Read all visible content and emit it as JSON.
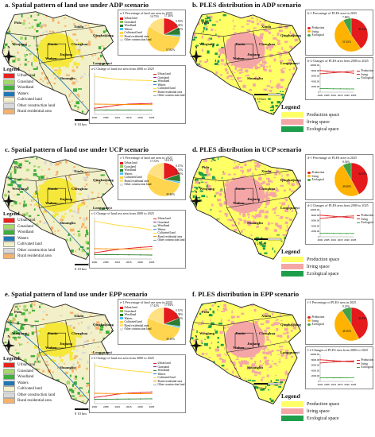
{
  "panels": [
    {
      "id": "a",
      "title": "a.  Spatial pattern of land use under ADP scenario",
      "kind": "landuse",
      "places": [
        "Pidu",
        "Xindu",
        "Qingbaijiang",
        "Wenjiang",
        "Jinniu",
        "Chenghua",
        "Wuhou",
        "Jinjiang",
        "Longquanyi",
        "Shuangliu"
      ],
      "pie_title": "a-1 Percentage of land use area in 2025",
      "pie_values": [
        17.46,
        0.55,
        7.4,
        1.6,
        57.82,
        16.75,
        0.03
      ],
      "pie_labels": [
        "17.46%",
        "0.55%",
        "7.40%",
        "1.60%",
        "57.82%",
        "16.75%",
        "0.03%"
      ],
      "line_title": "a-2 Change of land use area from 2000 to 2025"
    },
    {
      "id": "b",
      "title": "b.  PLES distribution in ADP scenario",
      "kind": "ples",
      "places": [
        "Pidu",
        "Xindu",
        "Qingbaijiang",
        "Wenjiang",
        "Jinniu",
        "Chenghua",
        "Wuhou",
        "Jinjiang",
        "Longquanyi",
        "Shuangliu"
      ],
      "pie_title": "b-1 Percentage of PLES area in 2025",
      "pie_values": [
        40.22,
        51.92,
        7.86
      ],
      "pie_labels": [
        "40.22%",
        "51.92%",
        "7.86%"
      ],
      "line_title": "b-2 Changes of PLES area from 2000 to 2025"
    },
    {
      "id": "c",
      "title": "c.  Spatial pattern of land use under UCP scenario",
      "kind": "landuse",
      "places": [
        "Pidu",
        "Xindu",
        "Qingbaijiang",
        "Wenjiang",
        "Jinniu",
        "Chenghua",
        "Wuhou",
        "Jinjiang",
        "Longquanyi",
        "Shuangliu"
      ],
      "pie_title": "c-1 Percentage of land use area in 2025",
      "pie_values": [
        18.41,
        0.15,
        6.74,
        1.68,
        49.46,
        17.52,
        0.04
      ],
      "pie_labels": [
        "18.41%",
        "0.15%",
        "6.74%",
        "1.68%",
        "49.46%",
        "17.52%",
        "0.04%"
      ],
      "line_title": "c-2 Change of land use area from 2000 to 2025"
    },
    {
      "id": "d",
      "title": "d.  PLES distribution in UCP scenario",
      "kind": "ples",
      "places": [
        "Pidu",
        "Xindu",
        "Qingbaijiang",
        "Wenjiang",
        "Jinniu",
        "Chenghua",
        "Wuhou",
        "Jinjiang",
        "Longquanyi",
        "Shuangliu"
      ],
      "pie_title": "d-1 Percentage of PLES area in 2025",
      "pie_values": [
        42.03,
        49.6,
        8.36
      ],
      "pie_labels": [
        "42.03%",
        "49.60%",
        "8.36%"
      ],
      "line_title": "d-2 Changes of PLES area from 2000 to 2025"
    },
    {
      "id": "e",
      "title": "e.  Spatial pattern of land use under EPP scenario",
      "kind": "landuse",
      "places": [
        "Pidu",
        "Xindu",
        "Qingbaijiang",
        "Wenjiang",
        "Jinniu",
        "Chenghua",
        "Wuhou",
        "Jinjiang",
        "Longquanyi",
        "Shuangliu"
      ],
      "pie_title": "e-1 Percentage of land use area in 2025",
      "pie_values": [
        17.84,
        0.15,
        7.38,
        1.66,
        49.16,
        17.42,
        0.39
      ],
      "pie_labels": [
        "17.84%",
        "0.15%",
        "7.38%",
        "1.66%",
        "49.16%",
        "17.42%",
        "0.39%"
      ],
      "line_title": "e-2 Change of land use area from 2000 to 2025"
    },
    {
      "id": "f",
      "title": "f.  PLES distribution in EPP scenario",
      "kind": "ples",
      "places": [
        "Pidu",
        "Xindu",
        "Qingbaijiang",
        "Wenjiang",
        "Jinniu",
        "Chenghua",
        "Wuhou",
        "Jinjiang",
        "Longquanyi",
        "Shuangliu"
      ],
      "pie_title": "f-1 Percentage of PLES area in 2025",
      "pie_values": [
        41.83,
        48.16,
        9.25
      ],
      "pie_labels": [
        "41.83%",
        "48.16%",
        "9.25%"
      ],
      "line_title": "f-2 Changes of PLES area from 2000 to 2025"
    }
  ],
  "landuse_legend": {
    "title": "Legend",
    "items": [
      "Urban land",
      "Grassland",
      "Woodland",
      "Waters",
      "Cultivated land",
      "Other construction land",
      "Rural residential area"
    ]
  },
  "landuse_pie_legend": [
    "Urban land",
    "Grassland",
    "Woodland",
    "Waters",
    "Cultivated land",
    "Rural residential area",
    "Other construction land"
  ],
  "landuse_line_legend": [
    "Urban land",
    "Grassland",
    "Woodland",
    "Waters",
    "Cultivated land",
    "Rural residential area",
    "Other construction land"
  ],
  "ples_pie_legend": [
    "Production",
    "living",
    "Ecological"
  ],
  "ples_line_legend": [
    "Production",
    "living",
    "Ecological"
  ],
  "ples_legend": {
    "title": "Legend",
    "items": [
      "Production space",
      "living space",
      "Ecological space"
    ]
  },
  "years": [
    "2000",
    "2005",
    "2010",
    "2015",
    "2020",
    "2025"
  ],
  "ples_yticks": [
    "10000.00",
    "8000.00",
    "6000.00",
    "4000.00",
    "2000.00",
    "0"
  ],
  "scale_label": "0     10 km",
  "north_label": "N",
  "colors": {
    "urban": "#e8231e",
    "grass": "#a5d86a",
    "wood": "#3fae3c",
    "water": "#1f78b4",
    "cultivated": "#f2f0c8",
    "other": "#d9d9d9",
    "rural": "#f6b26b",
    "production": "#ffff66",
    "living": "#f4a6a6",
    "ecological": "#1e9e4a",
    "pie_urban": "#e41a1c",
    "pie_grass": "#8bc34a",
    "pie_wood": "#2e7d32",
    "pie_water": "#4fc3f7",
    "pie_cult": "#ffd54f",
    "pie_rural": "#ffe082",
    "pie_other": "#e0e0e0",
    "boundary": "#222222"
  },
  "chart_data": [
    {
      "type": "pie",
      "title": "a-1 Percentage of land use area in 2025",
      "categories": [
        "Urban land",
        "Grassland",
        "Woodland",
        "Waters",
        "Cultivated land",
        "Rural residential area",
        "Other construction land"
      ],
      "values": [
        17.46,
        0.55,
        7.4,
        1.6,
        57.82,
        16.75,
        0.03
      ]
    },
    {
      "type": "line",
      "title": "a-2 Change of land use area from 2000 to 2025",
      "x": [
        "2000",
        "2005",
        "2010",
        "2015",
        "2020",
        "2025"
      ],
      "series": [
        {
          "name": "Urban land",
          "values": [
            900,
            1100,
            1350,
            1500,
            1550,
            1600
          ]
        },
        {
          "name": "Cultivated land",
          "values": [
            5500,
            5300,
            5100,
            5000,
            4950,
            4900
          ]
        },
        {
          "name": "Rural residential area",
          "values": [
            1500,
            1480,
            1460,
            1440,
            1430,
            1420
          ]
        },
        {
          "name": "Woodland",
          "values": [
            650,
            640,
            630,
            630,
            625,
            620
          ]
        }
      ]
    },
    {
      "type": "pie",
      "title": "b-1 Percentage of PLES area in 2025",
      "categories": [
        "Production",
        "living",
        "Ecological"
      ],
      "values": [
        40.22,
        51.92,
        7.86
      ]
    },
    {
      "type": "line",
      "title": "b-2 Changes of PLES area from 2000 to 2025",
      "x": [
        "2000",
        "2005",
        "2010",
        "2015",
        "2020",
        "2025"
      ],
      "series": [
        {
          "name": "Production",
          "values": [
            8000,
            7800,
            7600,
            7500,
            7300,
            7000
          ]
        },
        {
          "name": "living",
          "values": [
            6800,
            7000,
            7200,
            7400,
            7600,
            7900
          ]
        },
        {
          "name": "Ecological",
          "values": [
            1300,
            1300,
            1250,
            1250,
            1200,
            1200
          ]
        }
      ]
    },
    {
      "type": "pie",
      "title": "c-1 Percentage of land use area in 2025",
      "categories": [
        "Urban land",
        "Grassland",
        "Woodland",
        "Waters",
        "Cultivated land",
        "Rural residential area",
        "Other construction land"
      ],
      "values": [
        18.41,
        0.15,
        6.74,
        1.68,
        49.46,
        17.52,
        0.04
      ]
    },
    {
      "type": "line",
      "title": "c-2 Change of land use area from 2000 to 2025",
      "x": [
        "2000",
        "2005",
        "2010",
        "2015",
        "2020",
        "2025"
      ],
      "series": [
        {
          "name": "Urban land",
          "values": [
            900,
            1150,
            1400,
            1550,
            1700,
            1800
          ]
        },
        {
          "name": "Cultivated land",
          "values": [
            5500,
            5200,
            4900,
            4700,
            4500,
            4200
          ]
        },
        {
          "name": "Rural residential area",
          "values": [
            1500,
            1480,
            1460,
            1450,
            1440,
            1480
          ]
        },
        {
          "name": "Woodland",
          "values": [
            650,
            640,
            620,
            610,
            600,
            580
          ]
        }
      ]
    },
    {
      "type": "pie",
      "title": "d-1 Percentage of PLES area in 2025",
      "categories": [
        "Production",
        "living",
        "Ecological"
      ],
      "values": [
        42.03,
        49.6,
        8.36
      ]
    },
    {
      "type": "line",
      "title": "d-2 Changes of PLES area from 2000 to 2025",
      "x": [
        "2000",
        "2005",
        "2010",
        "2015",
        "2020",
        "2025"
      ],
      "series": [
        {
          "name": "Production",
          "values": [
            8000,
            7800,
            7600,
            7400,
            7200,
            7000
          ]
        },
        {
          "name": "living",
          "values": [
            6800,
            7000,
            7200,
            7400,
            7600,
            7700
          ]
        },
        {
          "name": "Ecological",
          "values": [
            1300,
            1280,
            1260,
            1250,
            1240,
            1230
          ]
        }
      ]
    },
    {
      "type": "pie",
      "title": "e-1 Percentage of land use area in 2025",
      "categories": [
        "Urban land",
        "Grassland",
        "Woodland",
        "Waters",
        "Cultivated land",
        "Rural residential area",
        "Other construction land"
      ],
      "values": [
        17.84,
        0.15,
        7.38,
        1.66,
        49.16,
        17.42,
        0.39
      ]
    },
    {
      "type": "line",
      "title": "e-2 Change of land use area from 2000 to 2025",
      "x": [
        "2000",
        "2005",
        "2010",
        "2015",
        "2020",
        "2025"
      ],
      "series": [
        {
          "name": "Urban land",
          "values": [
            900,
            1120,
            1380,
            1520,
            1600,
            1700
          ]
        },
        {
          "name": "Cultivated land",
          "values": [
            5500,
            5250,
            5000,
            4800,
            4650,
            4500
          ]
        },
        {
          "name": "Rural residential area",
          "values": [
            1500,
            1480,
            1460,
            1450,
            1440,
            1450
          ]
        },
        {
          "name": "Woodland",
          "values": [
            650,
            650,
            660,
            670,
            680,
            700
          ]
        }
      ]
    },
    {
      "type": "pie",
      "title": "f-1 Percentage of PLES area in 2025",
      "categories": [
        "Production",
        "living",
        "Ecological"
      ],
      "values": [
        41.83,
        48.16,
        9.25
      ]
    },
    {
      "type": "line",
      "title": "f-2 Changes of PLES area from 2000 to 2025",
      "x": [
        "2000",
        "2005",
        "2010",
        "2015",
        "2020",
        "2025"
      ],
      "series": [
        {
          "name": "Production",
          "values": [
            8000,
            7850,
            7650,
            7500,
            7350,
            7200
          ]
        },
        {
          "name": "living",
          "values": [
            6800,
            7000,
            7200,
            7350,
            7500,
            7600
          ]
        },
        {
          "name": "Ecological",
          "values": [
            1300,
            1300,
            1320,
            1330,
            1350,
            1380
          ]
        }
      ]
    }
  ]
}
